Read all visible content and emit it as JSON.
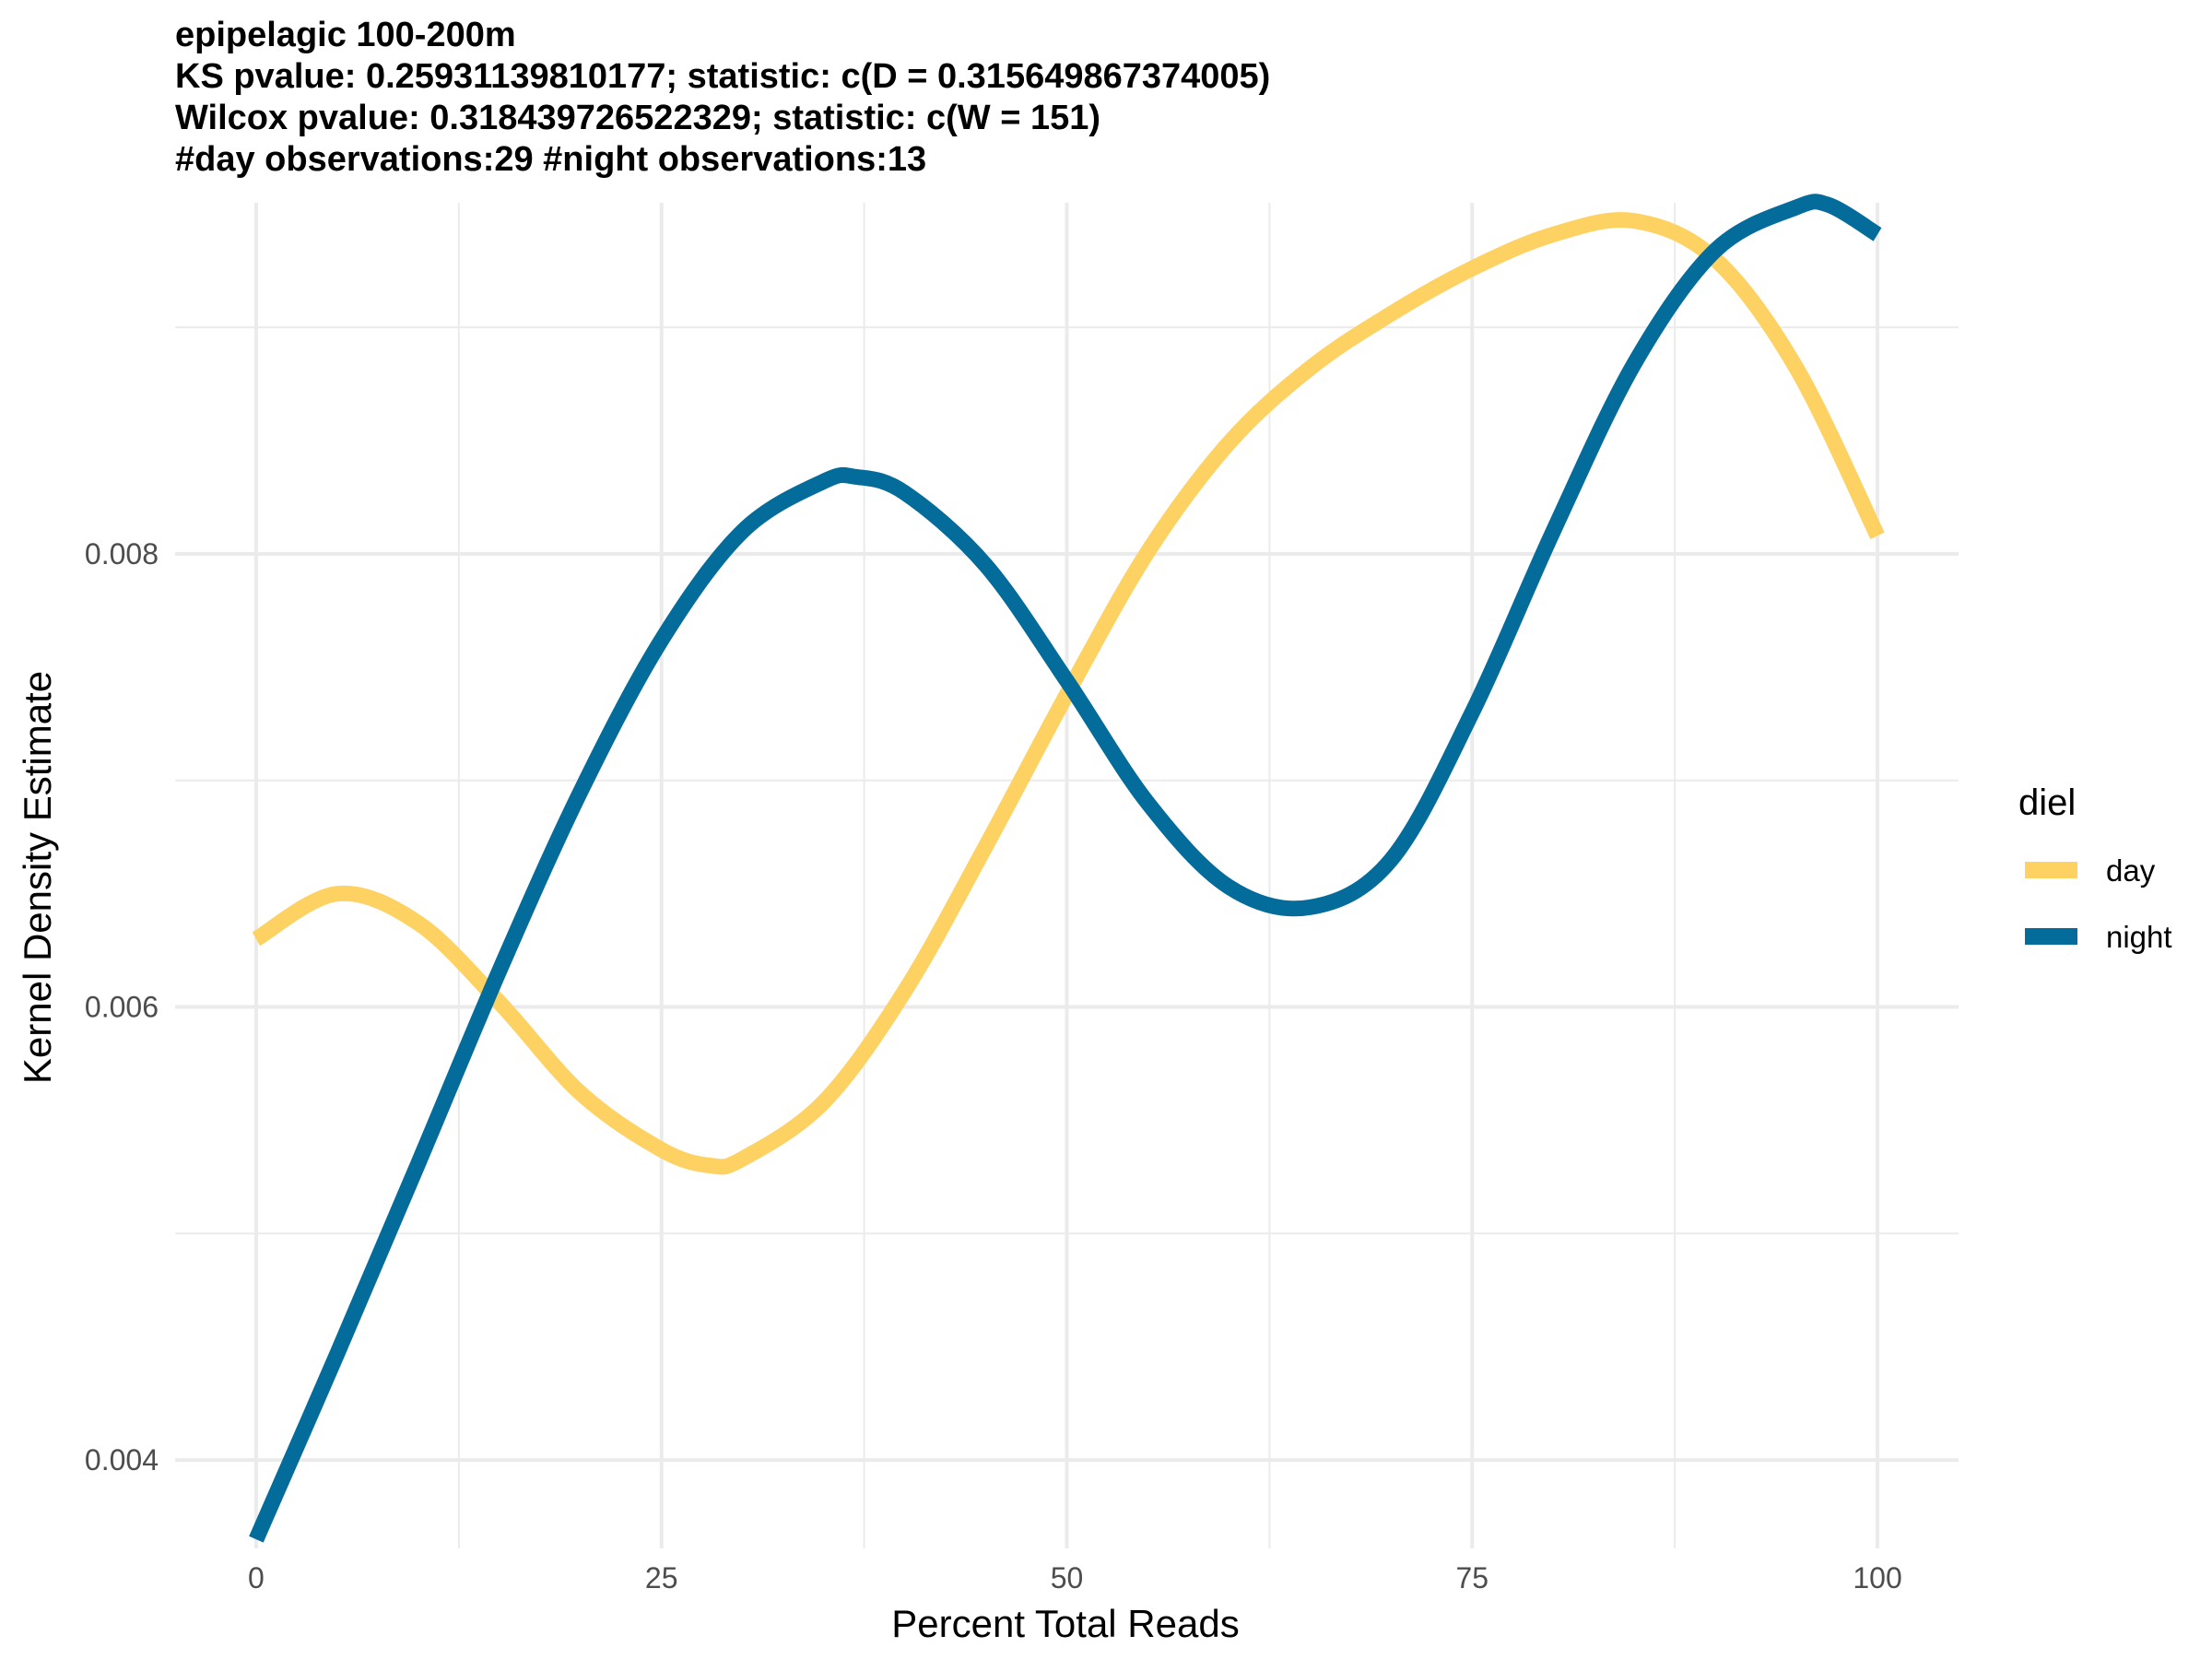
{
  "chart_data": {
    "type": "line",
    "title_lines": [
      "epipelagic 100-200m",
      "KS pvalue: 0.25931139810177; statistic: c(D = 0.315649867374005)",
      "Wilcox pvalue: 0.318439726522329; statistic: c(W = 151)",
      "#day observations:29 #night observations:13"
    ],
    "xlabel": "Percent Total Reads",
    "ylabel": "Kernel Density Estimate",
    "xlim": [
      -5,
      105
    ],
    "ylim": [
      0.00361,
      0.00955
    ],
    "x_ticks": [
      0,
      25,
      50,
      75,
      100
    ],
    "x_tick_labels": [
      "0",
      "25",
      "50",
      "75",
      "100"
    ],
    "y_ticks": [
      0.004,
      0.006,
      0.008
    ],
    "y_tick_labels": [
      "0.004",
      "0.006",
      "0.008"
    ],
    "grid": true,
    "legend": {
      "title": "diel",
      "position": "right",
      "entries": [
        "day",
        "night"
      ]
    },
    "series": [
      {
        "name": "day",
        "color": "#FDD262",
        "x": [
          0,
          5,
          10,
          15,
          20,
          25,
          28,
          30,
          35,
          40,
          45,
          50,
          55,
          60,
          65,
          70,
          75,
          80,
          85,
          90,
          95,
          100
        ],
        "y": [
          0.0063,
          0.0065,
          0.00637,
          0.00602,
          0.00562,
          0.00537,
          0.0053,
          0.00533,
          0.00558,
          0.00607,
          0.00671,
          0.00738,
          0.00801,
          0.00849,
          0.00882,
          0.00906,
          0.00926,
          0.00941,
          0.00947,
          0.0093,
          0.00882,
          0.00808
        ]
      },
      {
        "name": "night",
        "color": "#046C9A",
        "x": [
          0,
          5,
          10,
          15,
          20,
          25,
          30,
          35,
          37,
          40,
          45,
          50,
          55,
          60,
          65,
          70,
          75,
          80,
          85,
          90,
          95,
          97,
          100
        ],
        "y": [
          0.00365,
          0.00447,
          0.00531,
          0.00616,
          0.00695,
          0.00762,
          0.0081,
          0.00832,
          0.00834,
          0.00827,
          0.00795,
          0.00744,
          0.0069,
          0.00653,
          0.00644,
          0.00665,
          0.0073,
          0.0081,
          0.00884,
          0.00934,
          0.00953,
          0.00954,
          0.00941
        ]
      }
    ]
  }
}
